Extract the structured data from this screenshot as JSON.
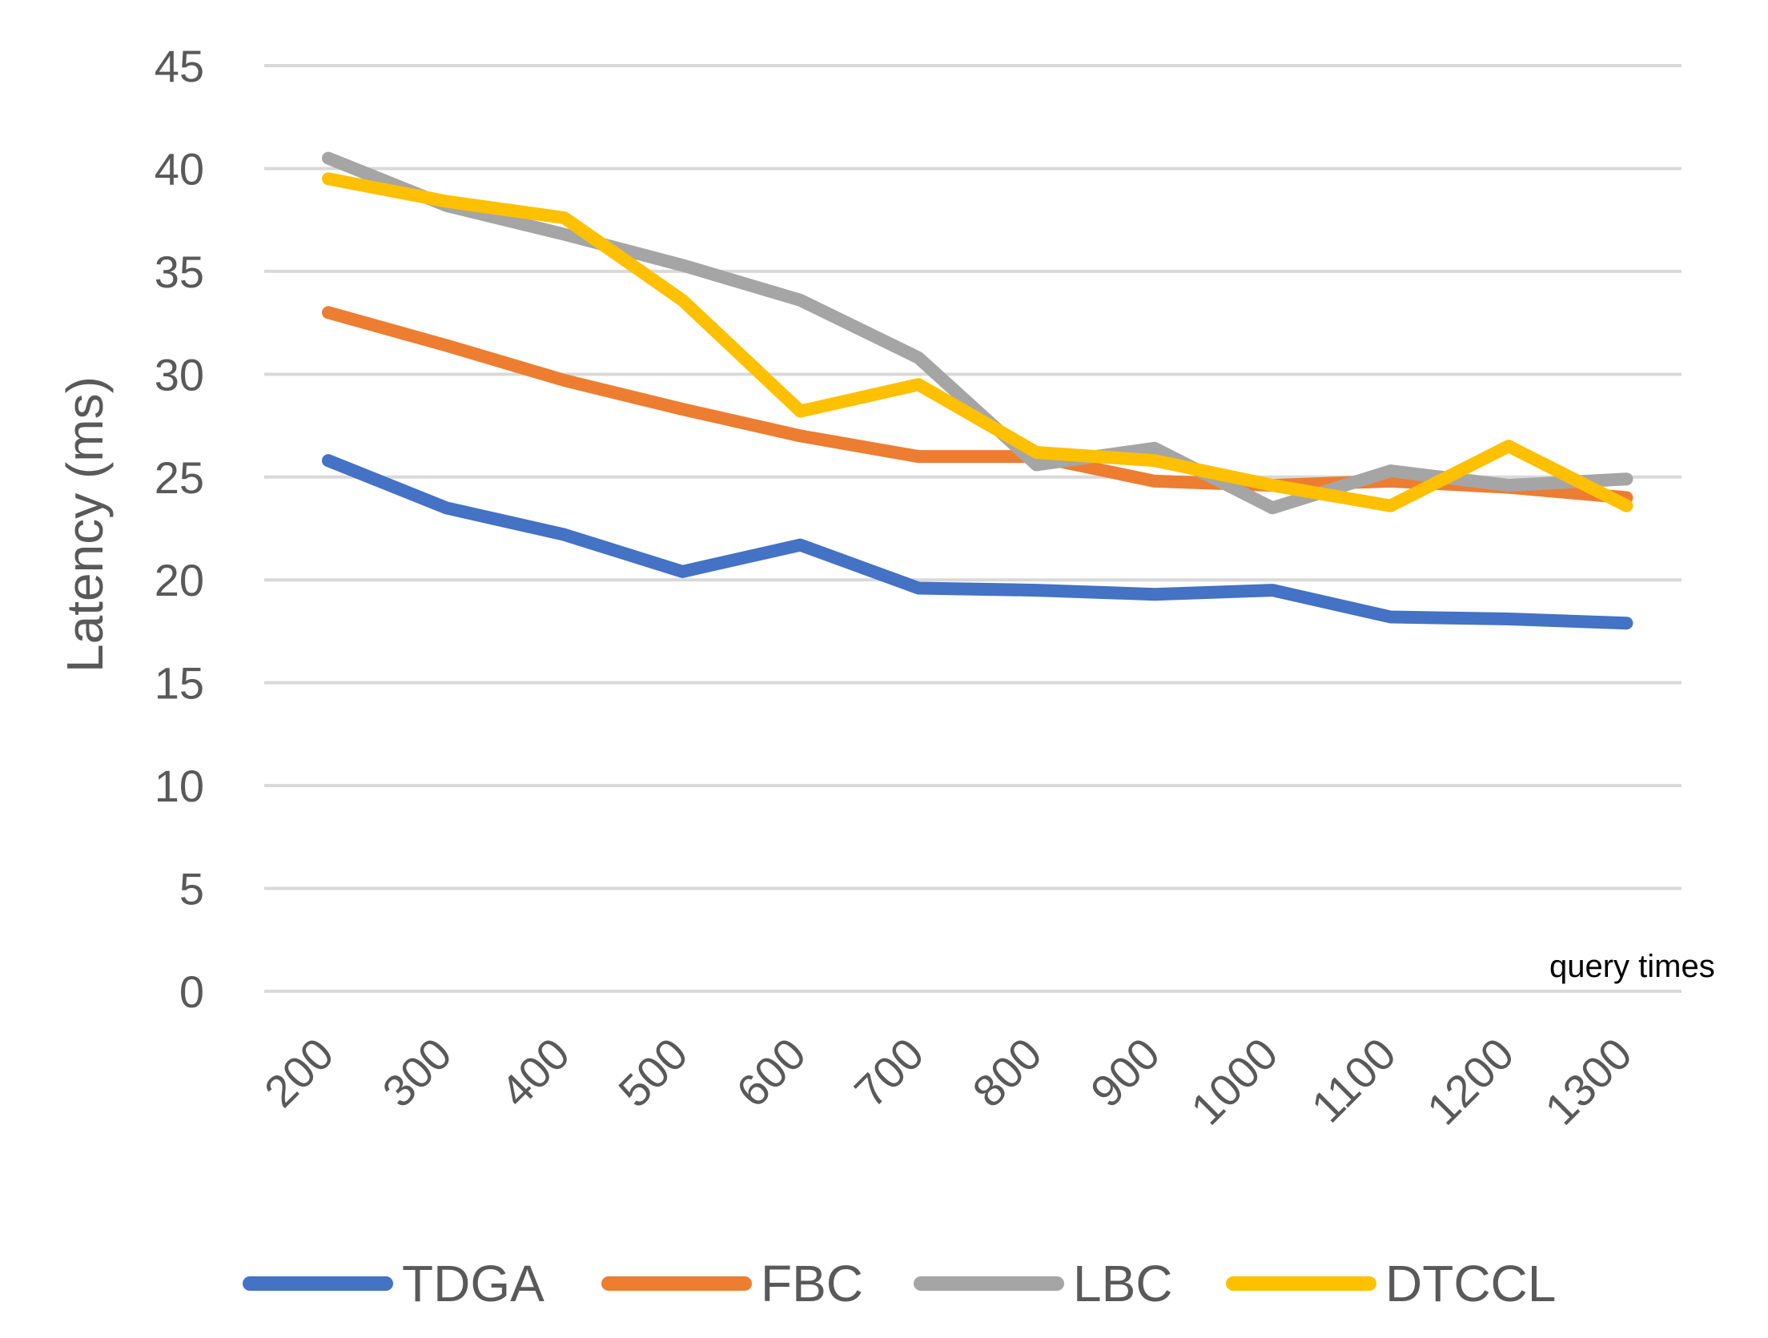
{
  "chart_data": {
    "type": "line",
    "ylabel": "Latency (ms)",
    "xlabel": "query times",
    "x": [
      200,
      300,
      400,
      500,
      600,
      700,
      800,
      900,
      1000,
      1100,
      1200,
      1300
    ],
    "ylim": [
      0,
      45
    ],
    "yticks": [
      0,
      5,
      10,
      15,
      20,
      25,
      30,
      35,
      40,
      45
    ],
    "grid": true,
    "legend_position": "bottom",
    "series": [
      {
        "name": "TDGA",
        "color": "#4472C4",
        "values": [
          25.8,
          23.5,
          22.2,
          20.4,
          21.7,
          19.6,
          19.5,
          19.3,
          19.5,
          18.2,
          18.1,
          17.9
        ]
      },
      {
        "name": "FBC",
        "color": "#ED7D31",
        "values": [
          33.0,
          31.4,
          29.7,
          28.3,
          27.0,
          26.0,
          26.0,
          24.8,
          24.6,
          24.8,
          24.5,
          24.0
        ]
      },
      {
        "name": "LBC",
        "color": "#A5A5A5",
        "values": [
          40.5,
          38.2,
          36.8,
          35.3,
          33.6,
          30.8,
          25.6,
          26.4,
          23.5,
          25.3,
          24.6,
          24.9
        ]
      },
      {
        "name": "DTCCL",
        "color": "#FFC000",
        "values": [
          39.5,
          38.4,
          37.6,
          33.6,
          28.2,
          29.5,
          26.2,
          25.8,
          24.6,
          23.6,
          26.5,
          23.6
        ]
      }
    ]
  }
}
